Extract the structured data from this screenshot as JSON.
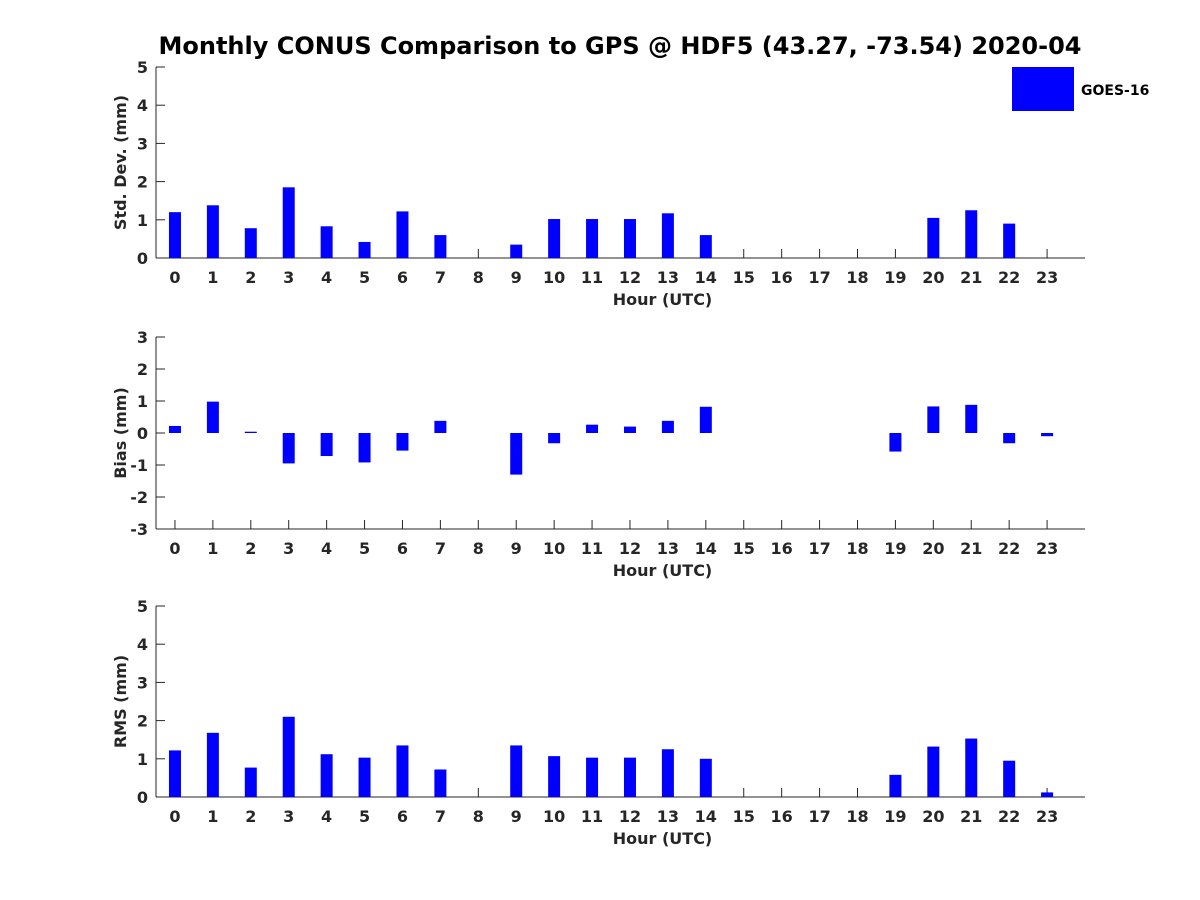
{
  "chart_data": {
    "type": "bar",
    "title": "Monthly CONUS Comparison to GPS @ HDF5 (43.27, -73.54) 2020-04",
    "legend": {
      "label": "GOES-16",
      "color": "#0000ff",
      "placement": "top-right"
    },
    "bar_color": "#0000ff",
    "categories": [
      "0",
      "1",
      "2",
      "3",
      "4",
      "5",
      "6",
      "7",
      "8",
      "9",
      "10",
      "11",
      "12",
      "13",
      "14",
      "15",
      "16",
      "17",
      "18",
      "19",
      "20",
      "21",
      "22",
      "23"
    ],
    "panels": [
      {
        "name": "std-dev",
        "ylabel": "Std. Dev. (mm)",
        "xlabel": "Hour (UTC)",
        "ylim": [
          0,
          5
        ],
        "yticks": [
          0,
          1,
          2,
          3,
          4,
          5
        ],
        "values": [
          1.2,
          1.38,
          0.78,
          1.85,
          0.83,
          0.42,
          1.22,
          0.6,
          null,
          0.35,
          1.02,
          1.02,
          1.02,
          1.17,
          0.6,
          null,
          null,
          null,
          null,
          null,
          1.05,
          1.25,
          0.9,
          null
        ]
      },
      {
        "name": "bias",
        "ylabel": "Bias (mm)",
        "xlabel": "Hour (UTC)",
        "ylim": [
          -3,
          3
        ],
        "yticks": [
          -3,
          -2,
          -1,
          0,
          1,
          2,
          3
        ],
        "values": [
          0.22,
          0.98,
          0.04,
          -0.95,
          -0.72,
          -0.92,
          -0.55,
          0.38,
          null,
          -1.3,
          -0.32,
          0.26,
          0.2,
          0.38,
          0.82,
          null,
          null,
          null,
          null,
          -0.58,
          0.83,
          0.88,
          -0.32,
          -0.1
        ]
      },
      {
        "name": "rms",
        "ylabel": "RMS (mm)",
        "xlabel": "Hour (UTC)",
        "ylim": [
          0,
          5
        ],
        "yticks": [
          0,
          1,
          2,
          3,
          4,
          5
        ],
        "values": [
          1.22,
          1.68,
          0.77,
          2.1,
          1.12,
          1.03,
          1.35,
          0.72,
          null,
          1.35,
          1.07,
          1.03,
          1.03,
          1.25,
          1.0,
          null,
          null,
          null,
          null,
          0.58,
          1.32,
          1.53,
          0.95,
          0.12
        ]
      }
    ]
  }
}
